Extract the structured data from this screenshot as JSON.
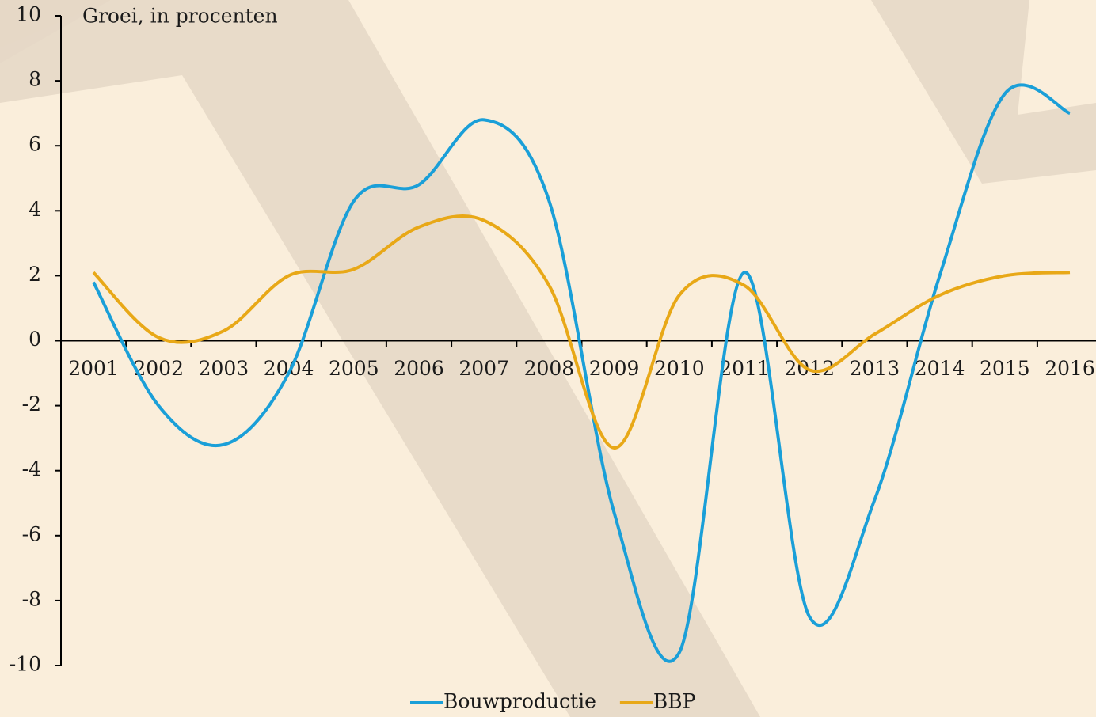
{
  "chart_data": {
    "type": "line",
    "y_axis_label": "Groei, in procenten",
    "categories": [
      "2001",
      "2002",
      "2003",
      "2004",
      "2005",
      "2006",
      "2007",
      "2008",
      "2009",
      "2010",
      "2011",
      "2012",
      "2013",
      "2014",
      "2015",
      "2016"
    ],
    "series": [
      {
        "name": "Bouwproductie",
        "color": "#1a9fd8",
        "values": [
          1.8,
          -2.0,
          -3.2,
          -1.0,
          4.3,
          4.8,
          6.8,
          4.3,
          -5.3,
          -9.6,
          2.1,
          -8.5,
          -4.9,
          2.0,
          7.6,
          7.0
        ]
      },
      {
        "name": "BBP",
        "color": "#e8a817",
        "values": [
          2.1,
          0.1,
          0.3,
          2.0,
          2.2,
          3.5,
          3.7,
          1.7,
          -3.3,
          1.4,
          1.7,
          -0.9,
          0.2,
          1.4,
          2.0,
          2.1
        ]
      }
    ],
    "ylim": [
      -10,
      10
    ],
    "yticks": [
      -10,
      -8,
      -6,
      -4,
      -2,
      0,
      2,
      4,
      6,
      8,
      10
    ]
  }
}
